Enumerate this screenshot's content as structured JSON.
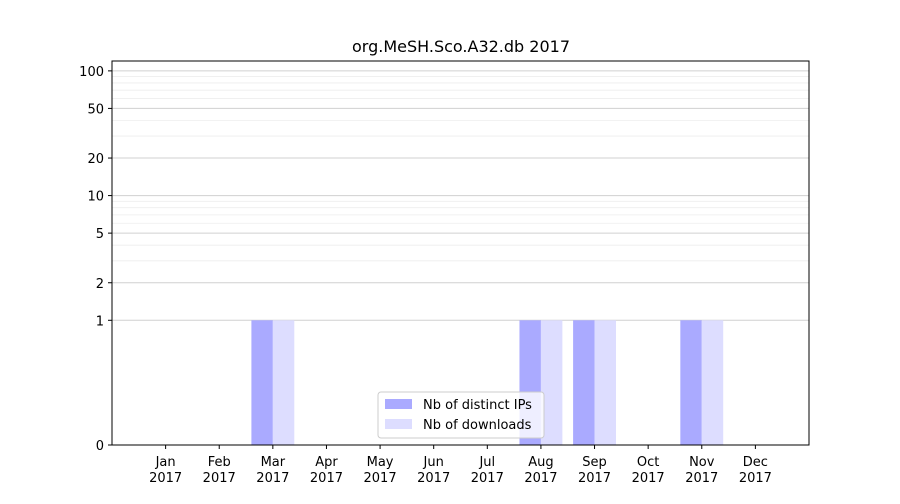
{
  "chart_data": {
    "type": "bar",
    "title": "org.MeSH.Sco.A32.db 2017",
    "xlabel": "",
    "ylabel": "",
    "yscale": "symlog",
    "ylim": [
      0,
      120
    ],
    "yticks": [
      0,
      1,
      2,
      5,
      10,
      20,
      50,
      100
    ],
    "ytick_labels": [
      "0",
      "1",
      "2",
      "5",
      "10",
      "20",
      "50",
      "100"
    ],
    "categories": [
      {
        "month": "Jan",
        "year": "2017"
      },
      {
        "month": "Feb",
        "year": "2017"
      },
      {
        "month": "Mar",
        "year": "2017"
      },
      {
        "month": "Apr",
        "year": "2017"
      },
      {
        "month": "May",
        "year": "2017"
      },
      {
        "month": "Jun",
        "year": "2017"
      },
      {
        "month": "Jul",
        "year": "2017"
      },
      {
        "month": "Aug",
        "year": "2017"
      },
      {
        "month": "Sep",
        "year": "2017"
      },
      {
        "month": "Oct",
        "year": "2017"
      },
      {
        "month": "Nov",
        "year": "2017"
      },
      {
        "month": "Dec",
        "year": "2017"
      }
    ],
    "series": [
      {
        "name": "Nb of distinct IPs",
        "color": "#aaaaff",
        "values": [
          0,
          0,
          1,
          0,
          0,
          0,
          0,
          1,
          1,
          0,
          1,
          0
        ]
      },
      {
        "name": "Nb of downloads",
        "color": "#ddddff",
        "values": [
          0,
          0,
          1,
          0,
          0,
          0,
          0,
          1,
          1,
          0,
          1,
          0
        ]
      }
    ],
    "legend_position": "lower center",
    "grid": true
  }
}
